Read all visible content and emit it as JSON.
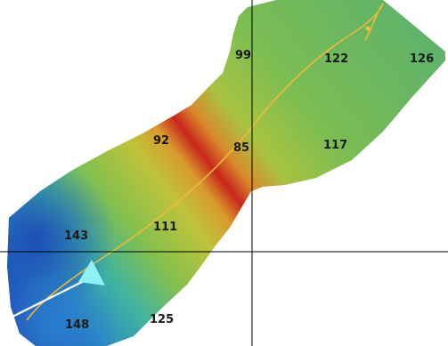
{
  "map": {
    "colors": {
      "background": "#ffffff",
      "deep": "#1f5bbf",
      "mid_deep": "#2fa6c8",
      "mid": "#6fbf55",
      "shallow_mid": "#b9c43a",
      "shallow": "#d8a531",
      "shallowest": "#c9201a",
      "track": "#f0b93a",
      "crosshair": "#000000",
      "vessel": "#8ff0f5",
      "heading_line": "#ffffff"
    },
    "icons": {
      "vessel": "vessel-triangle-icon"
    },
    "depth_labels": [
      {
        "id": "99",
        "text": "99"
      },
      {
        "id": "122",
        "text": "122"
      },
      {
        "id": "126",
        "text": "126"
      },
      {
        "id": "92",
        "text": "92"
      },
      {
        "id": "85",
        "text": "85"
      },
      {
        "id": "117",
        "text": "117"
      },
      {
        "id": "143",
        "text": "143"
      },
      {
        "id": "111",
        "text": "111"
      },
      {
        "id": "148",
        "text": "148"
      },
      {
        "id": "125",
        "text": "125"
      }
    ]
  }
}
